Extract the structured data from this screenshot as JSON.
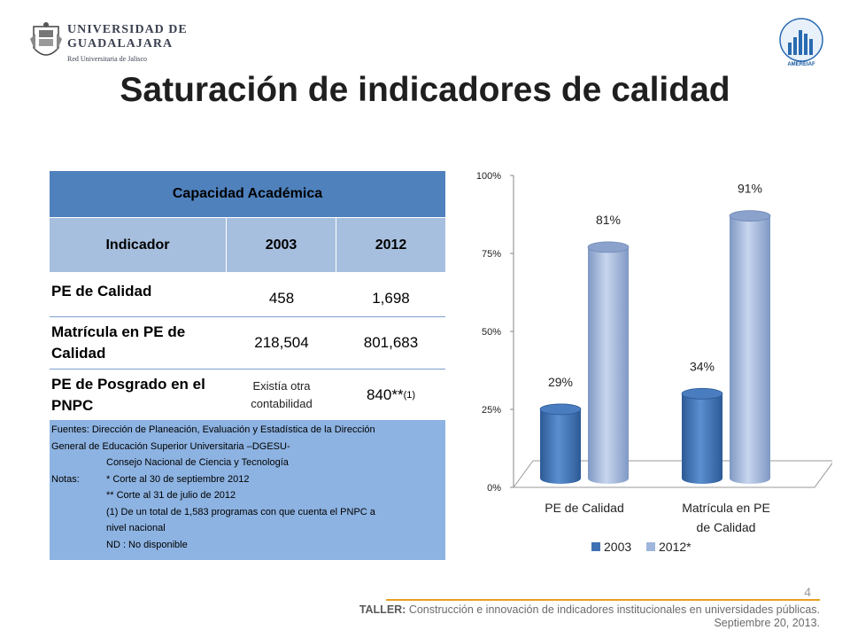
{
  "header": {
    "logo_left": {
      "line1": "UNIVERSIDAD DE",
      "line2": "GUADALAJARA",
      "line3": "Red Universitaria de Jalisco",
      "icon": "crest-icon"
    },
    "logo_right": {
      "text": "AMEREIAF",
      "icon": "building-bars-icon"
    },
    "title": "Saturación de indicadores de calidad"
  },
  "table": {
    "caption": "Capacidad Académica",
    "columns": [
      "Indicador",
      "2003",
      "2012"
    ],
    "rows": [
      {
        "label": "PE de Calidad",
        "v2003": "458",
        "v2012": "1,698"
      },
      {
        "label": "Matrícula en PE de Calidad",
        "v2003": "218,504",
        "v2012": "801,683"
      },
      {
        "label": "PE de Posgrado en el PNPC",
        "v2003": "Existía otra contabilidad",
        "v2012": "840**",
        "v2012_sup": "(1)"
      }
    ],
    "notes": [
      "Fuentes:  Dirección de Planeación, Evaluación y Estadística de la Dirección",
      "General de Educación Superior Universitaria –DGESU-",
      "Consejo Nacional de Ciencia y Tecnología",
      "Notas:",
      "* Corte al 30  de septiembre 2012",
      "** Corte al 31 de julio de 2012",
      "(1) De un total de 1,583  programas con que cuenta el PNPC a",
      "nivel nacional",
      "ND : No disponible"
    ]
  },
  "chart_data": {
    "type": "bar",
    "categories": [
      "PE de Calidad",
      "Matrícula en PE de Calidad"
    ],
    "category_lines": [
      [
        "PE de Calidad"
      ],
      [
        "Matrícula en PE",
        "de Calidad"
      ]
    ],
    "series": [
      {
        "name": "2003",
        "values": [
          29,
          34
        ],
        "labels": [
          "29%",
          "34%"
        ],
        "color": "#3f72b4"
      },
      {
        "name": "2012*",
        "values": [
          81,
          91
        ],
        "labels": [
          "81%",
          "91%"
        ],
        "color": "#9fb6dc"
      }
    ],
    "y_ticks": [
      "0%",
      "25%",
      "50%",
      "75%",
      "100%"
    ],
    "ylim": [
      0,
      100
    ],
    "legend_position": "bottom",
    "style": "3d-cylinder"
  },
  "footer": {
    "page_number": "4",
    "label": "TALLER:",
    "text": " Construcción e innovación de indicadores institucionales en universidades públicas.",
    "date": "Septiembre 20, 2013.",
    "accent": "#e8a020"
  }
}
